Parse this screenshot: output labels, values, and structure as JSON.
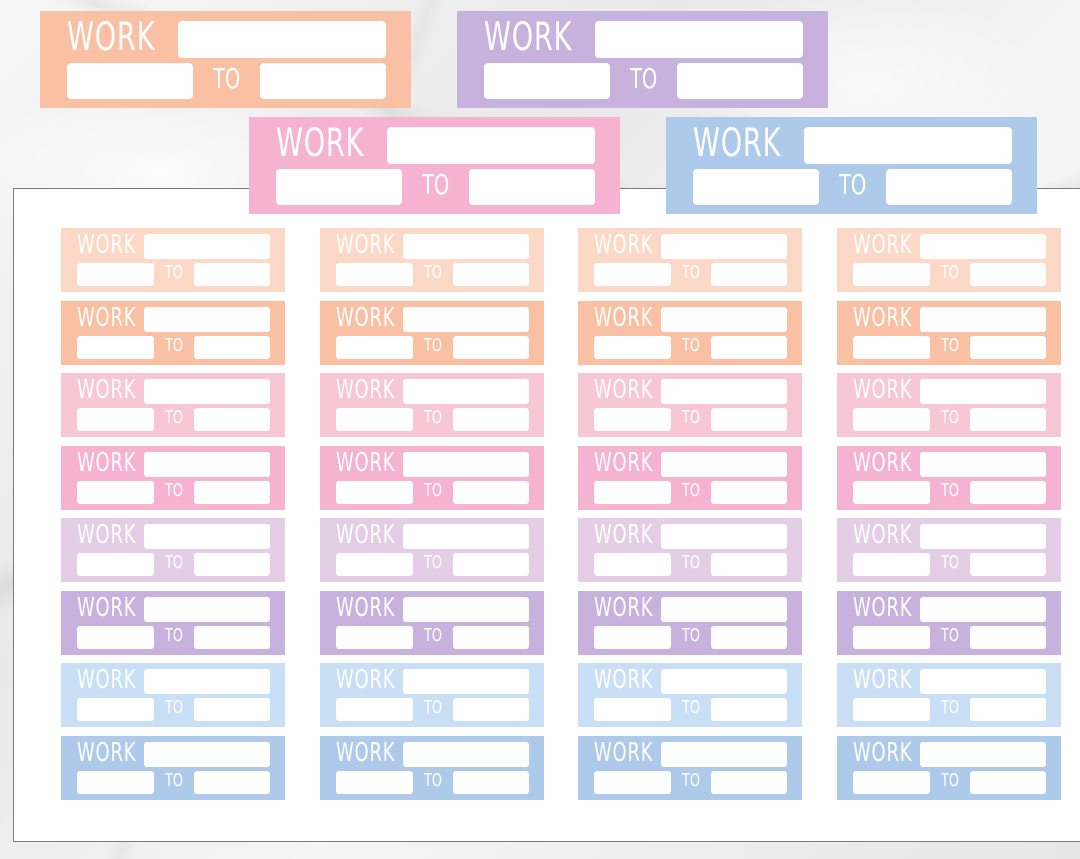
{
  "label_work": "WORK",
  "label_to": "TO",
  "colors": {
    "peach_light": "#fcd9c7",
    "peach": "#f9c0a3",
    "pink_light": "#f8c7d6",
    "pink": "#f6b3d1",
    "lavender_light": "#e4cee6",
    "lavender": "#c6b2dc",
    "blue_light": "#c9dff6",
    "blue": "#aecaeb",
    "sheet": "#ffffff"
  },
  "preview_stickers": [
    {
      "color": "peach"
    },
    {
      "color": "lavender"
    },
    {
      "color": "pink"
    },
    {
      "color": "blue"
    }
  ],
  "sheet_rows": [
    {
      "color": "peach_light"
    },
    {
      "color": "peach"
    },
    {
      "color": "pink_light"
    },
    {
      "color": "pink"
    },
    {
      "color": "lavender_light"
    },
    {
      "color": "lavender"
    },
    {
      "color": "blue_light"
    },
    {
      "color": "blue"
    }
  ]
}
